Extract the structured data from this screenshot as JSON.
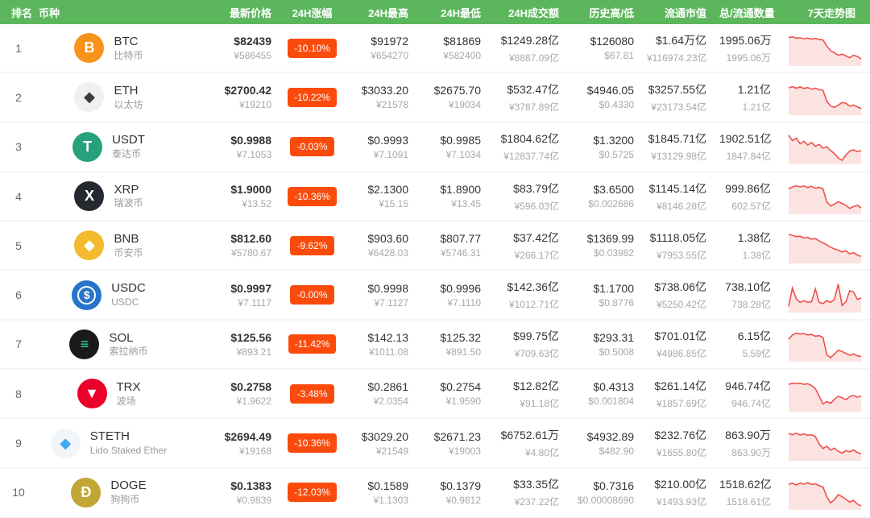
{
  "theme": {
    "header_bg": "#5cb75c",
    "badge_bg": "#fb4b0c",
    "spark_line": "#f0504c",
    "spark_fill": "#fbe3e1"
  },
  "header": {
    "columns": [
      {
        "key": "rank",
        "label": "排名",
        "align": "left"
      },
      {
        "key": "coin",
        "label": "币种",
        "align": "left"
      },
      {
        "key": "price",
        "label": "最新价格",
        "align": "right"
      },
      {
        "key": "change",
        "label": "24H涨幅",
        "align": "center"
      },
      {
        "key": "high",
        "label": "24H最高",
        "align": "right"
      },
      {
        "key": "low",
        "label": "24H最低",
        "align": "right"
      },
      {
        "key": "vol",
        "label": "24H成交额",
        "align": "right"
      },
      {
        "key": "hist",
        "label": "历史高/低",
        "align": "right"
      },
      {
        "key": "mcap",
        "label": "流通市值",
        "align": "right"
      },
      {
        "key": "supply",
        "label": "总/流通数量",
        "align": "right"
      },
      {
        "key": "spark",
        "label": "7天走势图",
        "align": "right"
      }
    ]
  },
  "rows": [
    {
      "rank": "1",
      "symbol": "BTC",
      "name": "比特币",
      "icon": {
        "bg": "#f7931a",
        "fg": "#ffffff",
        "glyph": "B"
      },
      "price_usd": "$82439",
      "price_cny": "¥586455",
      "change": "-10.10%",
      "high_usd": "$91972",
      "high_cny": "¥654270",
      "low_usd": "$81869",
      "low_cny": "¥582400",
      "vol_usd": "$1249.28亿",
      "vol_cny": "¥8887.09亿",
      "ath": "$126080",
      "atl": "$67.81",
      "mcap_usd": "$1.64万亿",
      "mcap_cny": "¥116974.23亿",
      "supply_total": "1995.06万",
      "supply_circ": "1995.06万",
      "sparkline": [
        88,
        90,
        86,
        87,
        84,
        86,
        83,
        85,
        82,
        80,
        60,
        45,
        38,
        30,
        34,
        28,
        22,
        30,
        26,
        18
      ]
    },
    {
      "rank": "2",
      "symbol": "ETH",
      "name": "以太坊",
      "icon": {
        "bg": "#eef0f2",
        "fg": "#3c3c3d",
        "glyph": "◆"
      },
      "price_usd": "$2700.42",
      "price_cny": "¥19210",
      "change": "-10.22%",
      "high_usd": "$3033.20",
      "high_cny": "¥21578",
      "low_usd": "$2675.70",
      "low_cny": "¥19034",
      "vol_usd": "$532.47亿",
      "vol_cny": "¥3787.89亿",
      "ath": "$4946.05",
      "atl": "$0.4330",
      "mcap_usd": "$3257.55亿",
      "mcap_cny": "¥23173.54亿",
      "supply_total": "1.21亿",
      "supply_circ": "1.21亿",
      "sparkline": [
        84,
        88,
        83,
        87,
        82,
        85,
        80,
        83,
        78,
        76,
        40,
        25,
        20,
        28,
        36,
        34,
        24,
        28,
        22,
        16
      ]
    },
    {
      "rank": "3",
      "symbol": "USDT",
      "name": "泰达币",
      "icon": {
        "bg": "#26a17b",
        "fg": "#ffffff",
        "glyph": "T"
      },
      "price_usd": "$0.9988",
      "price_cny": "¥7.1053",
      "change": "-0.03%",
      "high_usd": "$0.9993",
      "high_cny": "¥7.1091",
      "low_usd": "$0.9985",
      "low_cny": "¥7.1034",
      "vol_usd": "$1804.62亿",
      "vol_cny": "¥12837.74亿",
      "ath": "$1.3200",
      "atl": "$0.5725",
      "mcap_usd": "$1845.71亿",
      "mcap_cny": "¥13129.98亿",
      "supply_total": "1902.51亿",
      "supply_circ": "1847.84亿",
      "sparkline": [
        90,
        72,
        80,
        62,
        70,
        58,
        66,
        54,
        60,
        48,
        52,
        40,
        30,
        15,
        8,
        25,
        38,
        42,
        36,
        40
      ]
    },
    {
      "rank": "4",
      "symbol": "XRP",
      "name": "瑞波币",
      "icon": {
        "bg": "#23292f",
        "fg": "#ffffff",
        "glyph": "X"
      },
      "price_usd": "$1.9000",
      "price_cny": "¥13.52",
      "change": "-10.36%",
      "high_usd": "$2.1300",
      "high_cny": "¥15.15",
      "low_usd": "$1.8900",
      "low_cny": "¥13.45",
      "vol_usd": "$83.79亿",
      "vol_cny": "¥596.03亿",
      "ath": "$3.6500",
      "atl": "$0.002686",
      "mcap_usd": "$1145.14亿",
      "mcap_cny": "¥8146.28亿",
      "supply_total": "999.86亿",
      "supply_circ": "602.57亿",
      "sparkline": [
        78,
        84,
        88,
        84,
        87,
        82,
        86,
        80,
        83,
        78,
        35,
        22,
        28,
        36,
        30,
        24,
        14,
        20,
        24,
        16
      ]
    },
    {
      "rank": "5",
      "symbol": "BNB",
      "name": "币安币",
      "icon": {
        "bg": "#f3ba2f",
        "fg": "#ffffff",
        "glyph": "◆"
      },
      "price_usd": "$812.60",
      "price_cny": "¥5780.67",
      "change": "-9.62%",
      "high_usd": "$903.60",
      "high_cny": "¥6428.03",
      "low_usd": "$807.77",
      "low_cny": "¥5746.31",
      "vol_usd": "$37.42亿",
      "vol_cny": "¥266.17亿",
      "ath": "$1369.99",
      "atl": "$0.03982",
      "mcap_usd": "$1118.05亿",
      "mcap_cny": "¥7953.55亿",
      "supply_total": "1.38亿",
      "supply_circ": "1.38亿",
      "sparkline": [
        90,
        86,
        82,
        84,
        78,
        80,
        74,
        76,
        68,
        62,
        55,
        48,
        42,
        38,
        32,
        36,
        26,
        30,
        22,
        18
      ]
    },
    {
      "rank": "6",
      "symbol": "USDC",
      "name": "USDC",
      "icon": {
        "bg": "#2775ca",
        "fg": "#ffffff",
        "glyph": "$",
        "ring": true
      },
      "price_usd": "$0.9997",
      "price_cny": "¥7.1117",
      "change": "-0.00%",
      "high_usd": "$0.9998",
      "high_cny": "¥7.1127",
      "low_usd": "$0.9996",
      "low_cny": "¥7.1110",
      "vol_usd": "$142.36亿",
      "vol_cny": "¥1012.71亿",
      "ath": "$1.1700",
      "atl": "$0.8776",
      "mcap_usd": "$738.06亿",
      "mcap_cny": "¥5250.42亿",
      "supply_total": "738.10亿",
      "supply_circ": "738.28亿",
      "sparkline": [
        15,
        75,
        40,
        28,
        34,
        28,
        30,
        72,
        28,
        24,
        34,
        28,
        38,
        88,
        18,
        30,
        66,
        62,
        38,
        42
      ]
    },
    {
      "rank": "7",
      "symbol": "SOL",
      "name": "索拉纳币",
      "icon": {
        "bg": "#1a1a1a",
        "fg": "#2fe6b0",
        "glyph": "≡"
      },
      "price_usd": "$125.56",
      "price_cny": "¥893.21",
      "change": "-11.42%",
      "high_usd": "$142.13",
      "high_cny": "¥1011.08",
      "low_usd": "$125.32",
      "low_cny": "¥891.50",
      "vol_usd": "$99.75亿",
      "vol_cny": "¥709.63亿",
      "ath": "$293.31",
      "atl": "$0.5008",
      "mcap_usd": "$701.01亿",
      "mcap_cny": "¥4986.85亿",
      "supply_total": "6.15亿",
      "supply_circ": "5.59亿",
      "sparkline": [
        68,
        82,
        88,
        85,
        87,
        82,
        84,
        78,
        80,
        74,
        18,
        8,
        20,
        32,
        28,
        22,
        16,
        20,
        14,
        12
      ]
    },
    {
      "rank": "8",
      "symbol": "TRX",
      "name": "波场",
      "icon": {
        "bg": "#eb0029",
        "fg": "#ffffff",
        "glyph": "▼"
      },
      "price_usd": "$0.2758",
      "price_cny": "¥1.9622",
      "change": "-3.48%",
      "high_usd": "$0.2861",
      "high_cny": "¥2.0354",
      "low_usd": "$0.2754",
      "low_cny": "¥1.9590",
      "vol_usd": "$12.82亿",
      "vol_cny": "¥91.18亿",
      "ath": "$0.4313",
      "atl": "$0.001804",
      "mcap_usd": "$261.14亿",
      "mcap_cny": "¥1857.69亿",
      "supply_total": "946.74亿",
      "supply_circ": "946.74亿",
      "sparkline": [
        84,
        88,
        86,
        88,
        84,
        86,
        80,
        70,
        45,
        20,
        28,
        22,
        35,
        45,
        40,
        34,
        44,
        48,
        42,
        46
      ]
    },
    {
      "rank": "9",
      "symbol": "STETH",
      "name": "Lido Staked Ether",
      "icon": {
        "bg": "#f2f6f9",
        "fg": "#41a8f0",
        "glyph": "◆"
      },
      "price_usd": "$2694.49",
      "price_cny": "¥19168",
      "change": "-10.36%",
      "high_usd": "$3029.20",
      "high_cny": "¥21549",
      "low_usd": "$2671.23",
      "low_cny": "¥19003",
      "vol_usd": "$6752.61万",
      "vol_cny": "¥4.80亿",
      "ath": "$4932.89",
      "atl": "$482.90",
      "mcap_usd": "$232.76亿",
      "mcap_cny": "¥1655.80亿",
      "supply_total": "863.90万",
      "supply_circ": "863.90万",
      "sparkline": [
        84,
        80,
        85,
        79,
        83,
        78,
        80,
        74,
        50,
        35,
        42,
        30,
        36,
        26,
        20,
        28,
        24,
        30,
        22,
        18
      ]
    },
    {
      "rank": "10",
      "symbol": "DOGE",
      "name": "狗狗币",
      "icon": {
        "bg": "#c2a633",
        "fg": "#ffffff",
        "glyph": "Ð"
      },
      "price_usd": "$0.1383",
      "price_cny": "¥0.9839",
      "change": "-12.03%",
      "high_usd": "$0.1589",
      "high_cny": "¥1.1303",
      "low_usd": "$0.1379",
      "low_cny": "¥0.9812",
      "vol_usd": "$33.35亿",
      "vol_cny": "¥237.22亿",
      "ath": "$0.7316",
      "atl": "$0.00008690",
      "mcap_usd": "$210.00亿",
      "mcap_cny": "¥1493.93亿",
      "supply_total": "1518.62亿",
      "supply_circ": "1518.61亿",
      "sparkline": [
        78,
        82,
        76,
        82,
        79,
        84,
        78,
        80,
        74,
        70,
        38,
        18,
        28,
        45,
        38,
        30,
        20,
        26,
        14,
        8
      ]
    }
  ]
}
